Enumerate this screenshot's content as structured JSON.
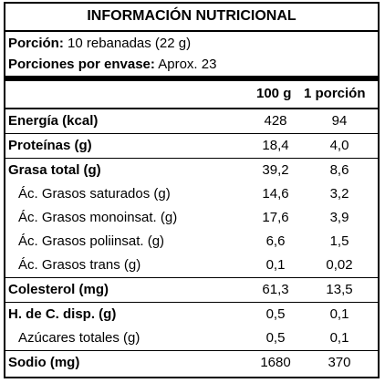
{
  "title": "INFORMACIÓN NUTRICIONAL",
  "serving": {
    "portion_label": "Porción:",
    "portion_value": "10 rebanadas (22 g)",
    "per_container_label": "Porciones por envase:",
    "per_container_value": "Aprox. 23"
  },
  "columns": {
    "per_100g": "100 g",
    "per_portion": "1 porción"
  },
  "rows": [
    {
      "name": "Energía (kcal)",
      "per_100g": "428",
      "per_portion": "94",
      "bold": true
    },
    {
      "name": "Proteínas (g)",
      "per_100g": "18,4",
      "per_portion": "4,0",
      "bold": true
    },
    {
      "name": "Grasa total (g)",
      "per_100g": "39,2",
      "per_portion": "8,6",
      "bold": true
    },
    {
      "name": "Ác. Grasos saturados (g)",
      "per_100g": "14,6",
      "per_portion": "3,2",
      "bold": false
    },
    {
      "name": "Ác. Grasos monoinsat. (g)",
      "per_100g": "17,6",
      "per_portion": "3,9",
      "bold": false
    },
    {
      "name": "Ác. Grasos poliinsat. (g)",
      "per_100g": "6,6",
      "per_portion": "1,5",
      "bold": false
    },
    {
      "name": "Ác. Grasos trans (g)",
      "per_100g": "0,1",
      "per_portion": "0,02",
      "bold": false
    },
    {
      "name": "Colesterol (mg)",
      "per_100g": "61,3",
      "per_portion": "13,5",
      "bold": true
    },
    {
      "name": "H. de C. disp. (g)",
      "per_100g": "0,5",
      "per_portion": "0,1",
      "bold": true
    },
    {
      "name": "Azúcares totales (g)",
      "per_100g": "0,5",
      "per_portion": "0,1",
      "bold": false
    },
    {
      "name": "Sodio (mg)",
      "per_100g": "1680",
      "per_portion": "370",
      "bold": true
    }
  ]
}
